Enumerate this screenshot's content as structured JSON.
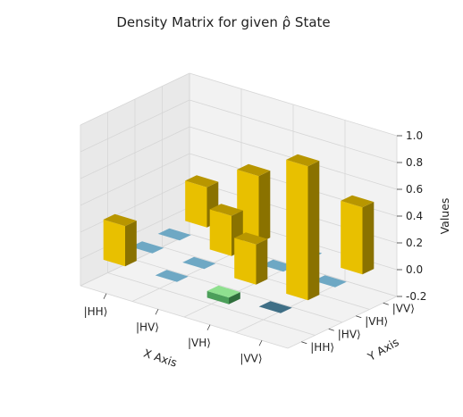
{
  "chart_data": {
    "type": "bar3d",
    "title": "Density Matrix for given ρ̂ State",
    "xlabel": "X Axis",
    "ylabel": "Y Axis",
    "zlabel": "Values",
    "x_categories": [
      "|HH⟩",
      "|HV⟩",
      "|VH⟩",
      "|VV⟩"
    ],
    "y_categories": [
      "|HH⟩",
      "|HV⟩",
      "|VH⟩",
      "|VV⟩"
    ],
    "z_ticks": [
      -0.2,
      0.0,
      0.2,
      0.4,
      0.6,
      0.8,
      1.0
    ],
    "zlim": [
      -0.2,
      1.0
    ],
    "grid": true,
    "matrix": [
      [
        0.3,
        0.0,
        0.0,
        0.3
      ],
      [
        0.0,
        0.0,
        0.3,
        0.5
      ],
      [
        -0.05,
        0.3,
        0.0,
        0.0
      ],
      [
        0.0,
        1.0,
        0.0,
        0.5
      ]
    ],
    "colors": {
      "positive": "#e8c000",
      "positive_dark": "#8a7200",
      "positive_side": "#b89600",
      "negative": "#6ea8c4",
      "negative_dark": "#3f6f86",
      "green": "#4c9f5a",
      "pane": "#f2f2f2",
      "pane_side": "#e9e9e9",
      "grid": "#d6d6d6"
    }
  }
}
